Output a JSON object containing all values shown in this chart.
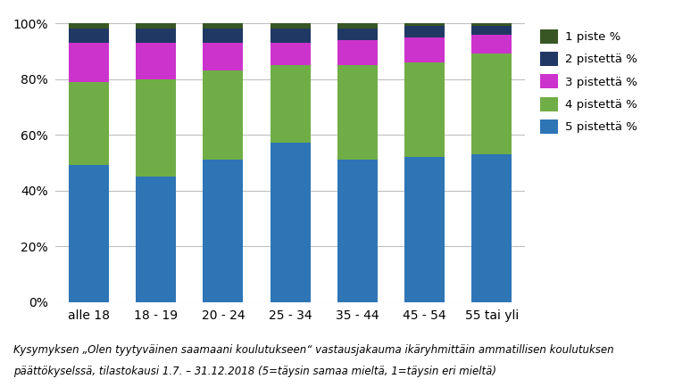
{
  "categories": [
    "alle 18",
    "18 - 19",
    "20 - 24",
    "25 - 34",
    "35 - 44",
    "45 - 54",
    "55 tai yli"
  ],
  "series": [
    {
      "label": "5 pistettä %",
      "color": "#2E75B6",
      "values": [
        49,
        45,
        51,
        57,
        51,
        52,
        53
      ]
    },
    {
      "label": "4 pistettä %",
      "color": "#70AD47",
      "values": [
        30,
        35,
        32,
        28,
        34,
        34,
        36
      ]
    },
    {
      "label": "3 pistettä %",
      "color": "#CC33CC",
      "values": [
        14,
        13,
        10,
        8,
        9,
        9,
        7
      ]
    },
    {
      "label": "2 pistettä %",
      "color": "#203864",
      "values": [
        5,
        5,
        5,
        5,
        4,
        4,
        3
      ]
    },
    {
      "label": "1 piste %",
      "color": "#375623",
      "values": [
        2,
        2,
        2,
        2,
        2,
        1,
        1
      ]
    }
  ],
  "ylim": [
    0,
    1.0
  ],
  "yticks": [
    0.0,
    0.2,
    0.4,
    0.6,
    0.8,
    1.0
  ],
  "yticklabels": [
    "0%",
    "20%",
    "40%",
    "60%",
    "80%",
    "100%"
  ],
  "caption_line1": "Kysymyksen „Olen tyytyväinen saamaani koulutukseen“ vastausjakauma ikäryhmittäin ammatillisen koulutuksen",
  "caption_line2": "päättökyselssä, tilastokausi 1.7. – 31.12.2018 (5=täysin samaa mieltä, 1=täysin eri mieltä)",
  "background_color": "#FFFFFF",
  "bar_width": 0.6,
  "grid_color": "#BFBFBF",
  "legend_order": [
    4,
    3,
    2,
    1,
    0
  ],
  "figsize": [
    7.74,
    4.34
  ],
  "dpi": 100
}
